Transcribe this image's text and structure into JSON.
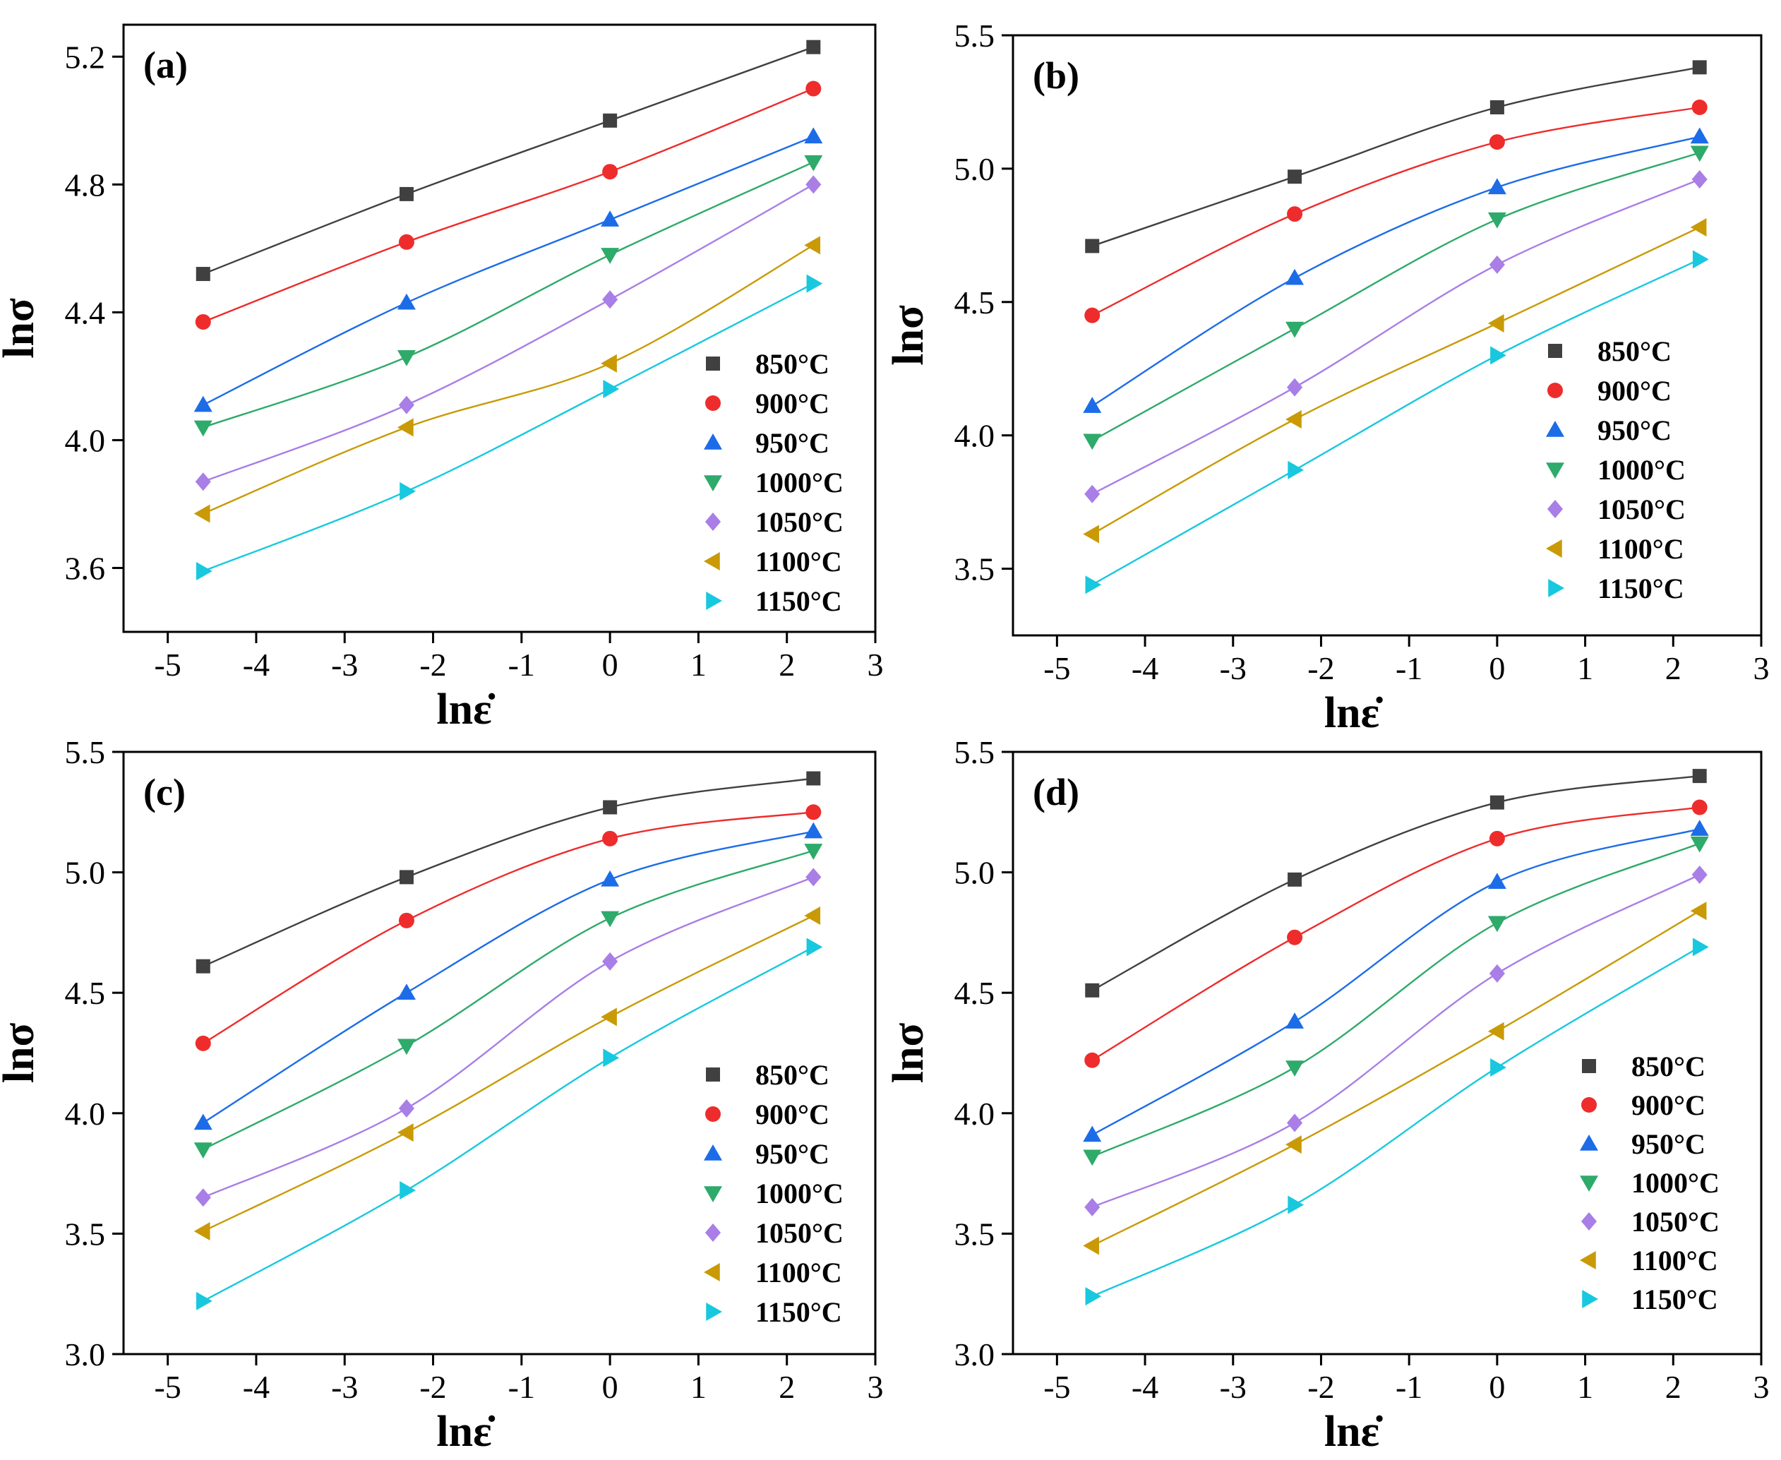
{
  "chart_data": [
    {
      "type": "line",
      "panel_label": "(a)",
      "xlabel": "lnε̇",
      "ylabel": "lnσ",
      "xlim": [
        -5.5,
        3
      ],
      "ylim": [
        3.4,
        5.3
      ],
      "xticks": [
        -5,
        -4,
        -3,
        -2,
        -1,
        0,
        1,
        2,
        3
      ],
      "yticks": [
        3.6,
        4.0,
        4.4,
        4.8,
        5.2
      ],
      "ytick_labels": [
        "3.6",
        "4.0",
        "4.4",
        "4.8",
        "5.2"
      ],
      "x": [
        -4.6,
        -2.3,
        0,
        2.3
      ],
      "legend_position": "lower-right",
      "series": [
        {
          "name": "850°C",
          "values": [
            4.52,
            4.77,
            5.0,
            5.23
          ]
        },
        {
          "name": "900°C",
          "values": [
            4.37,
            4.62,
            4.84,
            5.1
          ]
        },
        {
          "name": "950°C",
          "values": [
            4.11,
            4.43,
            4.69,
            4.95
          ]
        },
        {
          "name": "1000°C",
          "values": [
            4.04,
            4.26,
            4.58,
            4.87
          ]
        },
        {
          "name": "1050°C",
          "values": [
            3.87,
            4.11,
            4.44,
            4.8
          ]
        },
        {
          "name": "1100°C",
          "values": [
            3.77,
            4.04,
            4.24,
            4.61
          ]
        },
        {
          "name": "1150°C",
          "values": [
            3.59,
            3.84,
            4.16,
            4.49
          ]
        }
      ]
    },
    {
      "type": "line",
      "panel_label": "(b)",
      "xlabel": "lnε̇",
      "ylabel": "lnσ",
      "xlim": [
        -5.5,
        3
      ],
      "ylim": [
        3.25,
        5.5
      ],
      "xticks": [
        -5,
        -4,
        -3,
        -2,
        -1,
        0,
        1,
        2,
        3
      ],
      "yticks": [
        3.5,
        4.0,
        4.5,
        5.0,
        5.5
      ],
      "ytick_labels": [
        "3.5",
        "4.0",
        "4.5",
        "5.0",
        "5.5"
      ],
      "x": [
        -4.6,
        -2.3,
        0,
        2.3
      ],
      "legend_position": "lower-right",
      "series": [
        {
          "name": "850°C",
          "values": [
            4.71,
            4.97,
            5.23,
            5.38
          ]
        },
        {
          "name": "900°C",
          "values": [
            4.45,
            4.83,
            5.1,
            5.23
          ]
        },
        {
          "name": "950°C",
          "values": [
            4.11,
            4.59,
            4.93,
            5.12
          ]
        },
        {
          "name": "1000°C",
          "values": [
            3.98,
            4.4,
            4.81,
            5.06
          ]
        },
        {
          "name": "1050°C",
          "values": [
            3.78,
            4.18,
            4.64,
            4.96
          ]
        },
        {
          "name": "1100°C",
          "values": [
            3.63,
            4.06,
            4.42,
            4.78
          ]
        },
        {
          "name": "1150°C",
          "values": [
            3.44,
            3.87,
            4.3,
            4.66
          ]
        }
      ]
    },
    {
      "type": "line",
      "panel_label": "(c)",
      "xlabel": "lnε̇",
      "ylabel": "lnσ",
      "xlim": [
        -5.5,
        3
      ],
      "ylim": [
        3.0,
        5.5
      ],
      "xticks": [
        -5,
        -4,
        -3,
        -2,
        -1,
        0,
        1,
        2,
        3
      ],
      "yticks": [
        3.0,
        3.5,
        4.0,
        4.5,
        5.0,
        5.5
      ],
      "ytick_labels": [
        "3.0",
        "3.5",
        "4.0",
        "4.5",
        "5.0",
        "5.5"
      ],
      "x": [
        -4.6,
        -2.3,
        0,
        2.3
      ],
      "legend_position": "lower-right",
      "series": [
        {
          "name": "850°C",
          "values": [
            4.61,
            4.98,
            5.27,
            5.39
          ]
        },
        {
          "name": "900°C",
          "values": [
            4.29,
            4.8,
            5.14,
            5.25
          ]
        },
        {
          "name": "950°C",
          "values": [
            3.96,
            4.5,
            4.97,
            5.17
          ]
        },
        {
          "name": "1000°C",
          "values": [
            3.85,
            4.28,
            4.81,
            5.09
          ]
        },
        {
          "name": "1050°C",
          "values": [
            3.65,
            4.02,
            4.63,
            4.98
          ]
        },
        {
          "name": "1100°C",
          "values": [
            3.51,
            3.92,
            4.4,
            4.82
          ]
        },
        {
          "name": "1150°C",
          "values": [
            3.22,
            3.68,
            4.23,
            4.69
          ]
        }
      ]
    },
    {
      "type": "line",
      "panel_label": "(d)",
      "xlabel": "lnε̇",
      "ylabel": "lnσ",
      "xlim": [
        -5.5,
        3
      ],
      "ylim": [
        3.0,
        5.5
      ],
      "xticks": [
        -5,
        -4,
        -3,
        -2,
        -1,
        0,
        1,
        2,
        3
      ],
      "yticks": [
        3.0,
        3.5,
        4.0,
        4.5,
        5.0,
        5.5
      ],
      "ytick_labels": [
        "3.0",
        "3.5",
        "4.0",
        "4.5",
        "5.0",
        "5.5"
      ],
      "x": [
        -4.6,
        -2.3,
        0,
        2.3
      ],
      "legend_position": "lower-right",
      "series": [
        {
          "name": "850°C",
          "values": [
            4.51,
            4.97,
            5.29,
            5.4
          ]
        },
        {
          "name": "900°C",
          "values": [
            4.22,
            4.73,
            5.14,
            5.27
          ]
        },
        {
          "name": "950°C",
          "values": [
            3.91,
            4.38,
            4.96,
            5.18
          ]
        },
        {
          "name": "1000°C",
          "values": [
            3.82,
            4.19,
            4.79,
            5.12
          ]
        },
        {
          "name": "1050°C",
          "values": [
            3.61,
            3.96,
            4.58,
            4.99
          ]
        },
        {
          "name": "1100°C",
          "values": [
            3.45,
            3.87,
            4.34,
            4.84
          ]
        },
        {
          "name": "1150°C",
          "values": [
            3.24,
            3.62,
            4.19,
            4.69
          ]
        }
      ]
    }
  ],
  "series_style": [
    {
      "name": "850°C",
      "color": "#404040",
      "marker": "square"
    },
    {
      "name": "900°C",
      "color": "#ee2c2c",
      "marker": "circle"
    },
    {
      "name": "950°C",
      "color": "#1c6ce8",
      "marker": "triangle-up"
    },
    {
      "name": "1000°C",
      "color": "#2eaa6a",
      "marker": "triangle-down"
    },
    {
      "name": "1050°C",
      "color": "#a97ee6",
      "marker": "diamond"
    },
    {
      "name": "1100°C",
      "color": "#c99a06",
      "marker": "triangle-left"
    },
    {
      "name": "1150°C",
      "color": "#18c8de",
      "marker": "triangle-right"
    }
  ]
}
